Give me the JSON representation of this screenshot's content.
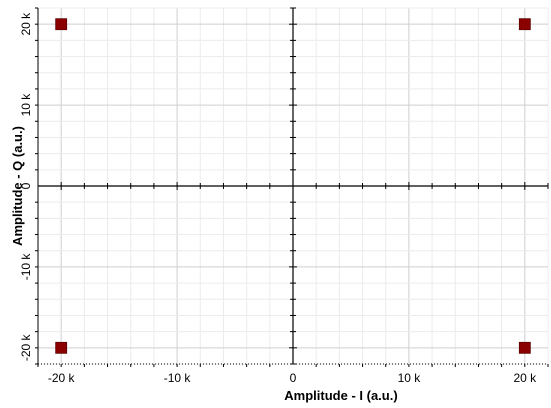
{
  "chart_data": {
    "type": "scatter",
    "title": "",
    "xlabel": "Amplitude - I (a.u.)",
    "ylabel": "Amplitude - Q (a.u.)",
    "xlim": [
      -22000,
      22000
    ],
    "ylim": [
      -22000,
      22000
    ],
    "x_ticks": [
      {
        "value": -20000,
        "label": "-20 k"
      },
      {
        "value": -10000,
        "label": "-10 k"
      },
      {
        "value": 0,
        "label": "0"
      },
      {
        "value": 10000,
        "label": "10 k"
      },
      {
        "value": 20000,
        "label": "20 k"
      }
    ],
    "y_ticks": [
      {
        "value": 20000,
        "label": "20 k"
      },
      {
        "value": 10000,
        "label": "10 k"
      },
      {
        "value": 0,
        "label": "0"
      },
      {
        "value": -10000,
        "label": "-10 k"
      },
      {
        "value": -20000,
        "label": "-20 k"
      }
    ],
    "grid": true,
    "marker_color": "#8b0000",
    "series": [
      {
        "points": [
          {
            "x": -20000,
            "y": 20000
          },
          {
            "x": 20000,
            "y": 20000
          },
          {
            "x": -20000,
            "y": -20000
          },
          {
            "x": 20000,
            "y": -20000
          }
        ]
      }
    ]
  }
}
